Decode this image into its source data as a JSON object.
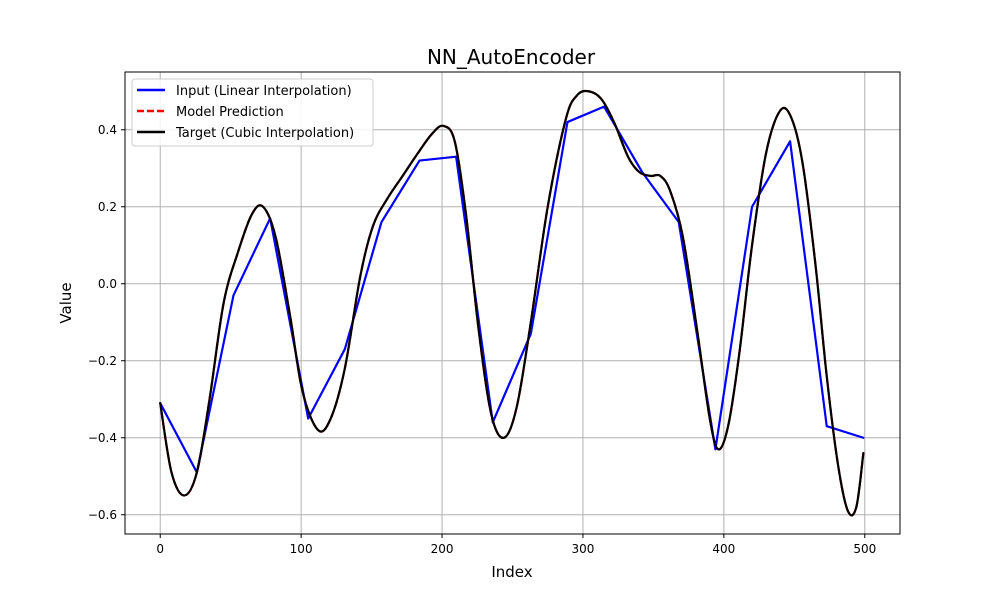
{
  "chart_data": {
    "type": "line",
    "title": "NN_AutoEncoder",
    "xlabel": "Index",
    "ylabel": "Value",
    "xlim": [
      -25,
      525
    ],
    "ylim": [
      -0.65,
      0.55
    ],
    "xticks": [
      0,
      100,
      200,
      300,
      400,
      500
    ],
    "yticks": [
      -0.6,
      -0.4,
      -0.2,
      0.0,
      0.2,
      0.4
    ],
    "xtick_labels": [
      "0",
      "100",
      "200",
      "300",
      "400",
      "500"
    ],
    "ytick_labels": [
      "−0.6",
      "−0.4",
      "−0.2",
      "0.0",
      "0.2",
      "0.4"
    ],
    "grid": true,
    "legend_position": "top-left",
    "series": [
      {
        "name": "Input (Linear Interpolation)",
        "color": "#0000ff",
        "style": "solid",
        "x": [
          0,
          26,
          52,
          78,
          105,
          131,
          157,
          184,
          210,
          236,
          263,
          289,
          315,
          342,
          368,
          394,
          420,
          447,
          473,
          499
        ],
        "y": [
          -0.31,
          -0.49,
          -0.03,
          0.17,
          -0.35,
          -0.17,
          0.16,
          0.32,
          0.33,
          -0.36,
          -0.13,
          0.42,
          0.46,
          0.29,
          0.16,
          -0.43,
          0.2,
          0.37,
          -0.37,
          -0.4
        ]
      },
      {
        "name": "Model Prediction",
        "color": "#ff0000",
        "style": "dashed",
        "x": [
          0,
          8,
          17,
          26,
          35,
          45,
          55,
          65,
          73,
          82,
          92,
          101,
          112,
          121,
          131,
          142,
          151,
          161,
          172,
          183,
          193,
          201,
          209,
          217,
          226,
          235,
          244,
          253,
          263,
          275,
          288,
          296,
          304,
          313,
          322,
          332,
          340,
          348,
          355,
          362,
          371,
          381,
          390,
          396,
          403,
          411,
          420,
          430,
          440,
          448,
          456,
          465,
          473,
          481,
          488,
          494,
          499
        ],
        "y": [
          -0.31,
          -0.49,
          -0.55,
          -0.49,
          -0.3,
          -0.05,
          0.08,
          0.18,
          0.2,
          0.12,
          -0.08,
          -0.28,
          -0.38,
          -0.35,
          -0.22,
          0.02,
          0.15,
          0.22,
          0.28,
          0.34,
          0.39,
          0.41,
          0.37,
          0.18,
          -0.12,
          -0.34,
          -0.4,
          -0.32,
          -0.1,
          0.2,
          0.43,
          0.49,
          0.5,
          0.48,
          0.42,
          0.33,
          0.29,
          0.28,
          0.28,
          0.24,
          0.12,
          -0.12,
          -0.35,
          -0.43,
          -0.37,
          -0.18,
          0.1,
          0.34,
          0.45,
          0.43,
          0.31,
          0.05,
          -0.24,
          -0.47,
          -0.59,
          -0.58,
          -0.44
        ]
      },
      {
        "name": "Target (Cubic Interpolation)",
        "color": "#000000",
        "style": "solid",
        "x": [
          0,
          8,
          17,
          26,
          35,
          45,
          55,
          65,
          73,
          82,
          92,
          101,
          112,
          121,
          131,
          142,
          151,
          161,
          172,
          183,
          193,
          201,
          209,
          217,
          226,
          235,
          244,
          253,
          263,
          275,
          288,
          296,
          304,
          313,
          322,
          332,
          340,
          348,
          355,
          362,
          371,
          381,
          390,
          396,
          403,
          411,
          420,
          430,
          440,
          448,
          456,
          465,
          473,
          481,
          488,
          494,
          499
        ],
        "y": [
          -0.31,
          -0.49,
          -0.55,
          -0.49,
          -0.3,
          -0.05,
          0.08,
          0.18,
          0.2,
          0.12,
          -0.08,
          -0.28,
          -0.38,
          -0.35,
          -0.22,
          0.02,
          0.15,
          0.22,
          0.28,
          0.34,
          0.39,
          0.41,
          0.37,
          0.18,
          -0.12,
          -0.34,
          -0.4,
          -0.32,
          -0.1,
          0.2,
          0.43,
          0.49,
          0.5,
          0.48,
          0.42,
          0.33,
          0.29,
          0.28,
          0.28,
          0.24,
          0.12,
          -0.12,
          -0.35,
          -0.43,
          -0.37,
          -0.18,
          0.1,
          0.34,
          0.45,
          0.43,
          0.31,
          0.05,
          -0.24,
          -0.47,
          -0.59,
          -0.58,
          -0.44
        ]
      }
    ]
  }
}
